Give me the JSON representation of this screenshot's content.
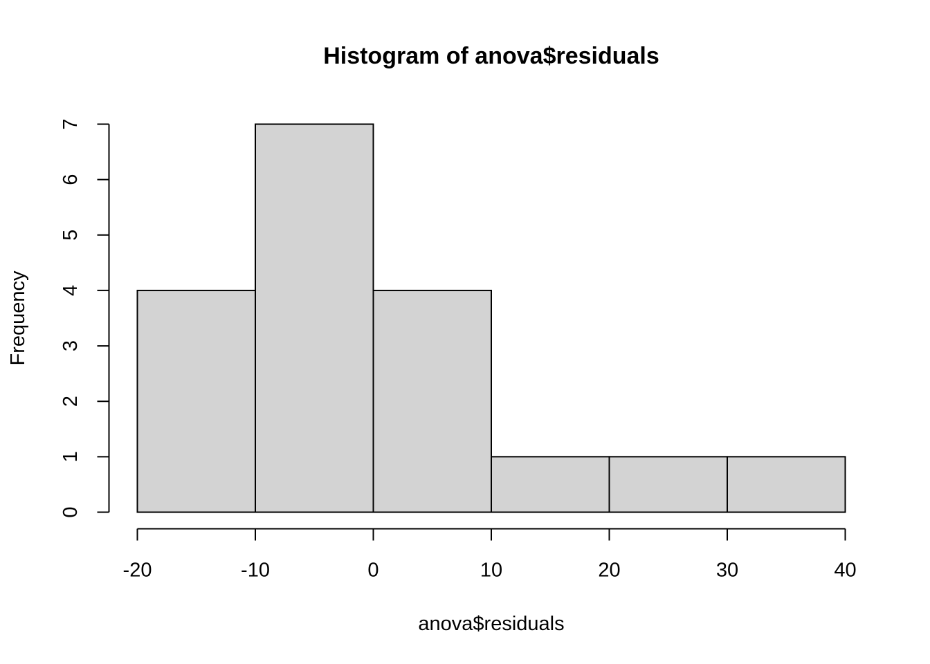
{
  "chart_data": {
    "type": "bar",
    "title": "Histogram of anova$residuals",
    "xlabel": "anova$residuals",
    "ylabel": "Frequency",
    "bins": [
      {
        "from": -20,
        "to": -10,
        "count": 4
      },
      {
        "from": -10,
        "to": 0,
        "count": 7
      },
      {
        "from": 0,
        "to": 10,
        "count": 4
      },
      {
        "from": 10,
        "to": 20,
        "count": 1
      },
      {
        "from": 20,
        "to": 30,
        "count": 1
      },
      {
        "from": 30,
        "to": 40,
        "count": 1
      }
    ],
    "x_ticks": [
      "-20",
      "-10",
      "0",
      "10",
      "20",
      "30",
      "40"
    ],
    "y_ticks": [
      "0",
      "1",
      "2",
      "3",
      "4",
      "5",
      "6",
      "7"
    ],
    "xlim": [
      -20,
      40
    ],
    "ylim": [
      0,
      7
    ],
    "grid": false,
    "bar_fill": "#d3d3d3",
    "bar_stroke": "#000000"
  }
}
